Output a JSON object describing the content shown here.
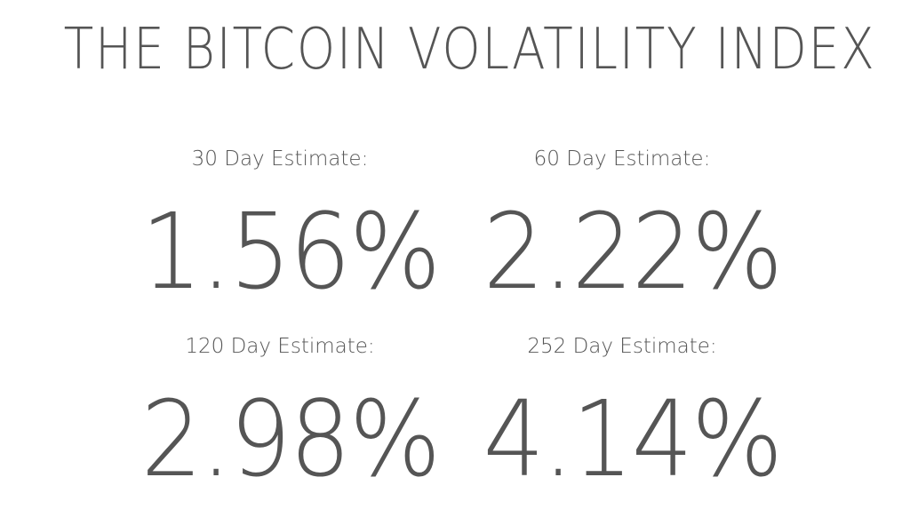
{
  "title": "THE BITCOIN VOLATILITY INDEX",
  "estimates": [
    {
      "label": "30 Day Estimate:",
      "value": "1.56%"
    },
    {
      "label": "60 Day Estimate:",
      "value": "2.22%"
    },
    {
      "label": "120 Day Estimate:",
      "value": "2.98%"
    },
    {
      "label": "252 Day Estimate:",
      "value": "4.14%"
    }
  ],
  "colors": {
    "text": "#555555",
    "background": "#ffffff"
  }
}
